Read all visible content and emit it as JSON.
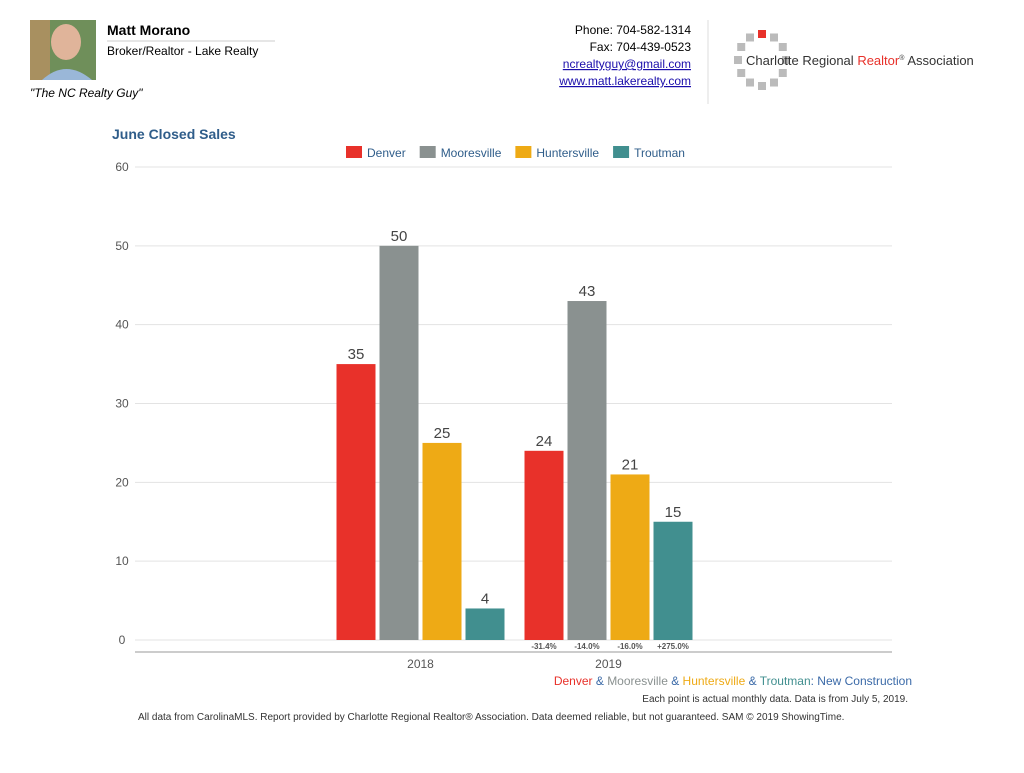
{
  "header": {
    "name": "Matt Morano",
    "role": "Broker/Realtor - Lake Realty",
    "tagline": "\"The NC Realty Guy\"",
    "phone": "Phone: 704-582-1314",
    "fax": "Fax: 704-439-0523",
    "email": "ncrealtyguy@gmail.com",
    "website": "www.matt.lakerealty.com",
    "association": {
      "start": "Charlotte Regional",
      "highlight": "Realtor",
      "mark": "®",
      "end": "Association"
    }
  },
  "chart_data": {
    "type": "bar",
    "title": "June Closed Sales",
    "categories": [
      "2018",
      "2019"
    ],
    "series": [
      {
        "name": "Denver",
        "color": "#e8312a",
        "values": [
          35,
          24
        ],
        "change_label": "-31.4%"
      },
      {
        "name": "Mooresville",
        "color": "#8a9190",
        "values": [
          50,
          43
        ],
        "change_label": "-14.0%"
      },
      {
        "name": "Huntersville",
        "color": "#eeaa15",
        "values": [
          25,
          21
        ],
        "change_label": "-16.0%"
      },
      {
        "name": "Troutman",
        "color": "#418f8f",
        "values": [
          4,
          15
        ],
        "change_label": "+275.0%"
      }
    ],
    "ylim": [
      0,
      60
    ],
    "yticks": [
      0,
      10,
      20,
      30,
      40,
      50,
      60
    ],
    "grid": true,
    "caption": {
      "separator": " & ",
      "suffix": ": New Construction",
      "suffix_color": "#3b6aa8"
    },
    "note": "Each point is actual monthly data. Data is from July 5, 2019.",
    "source": "All data from CarolinaMLS. Report provided by Charlotte Regional Realtor® Association. Data deemed reliable, but not guaranteed. SAM © 2019 ShowingTime."
  }
}
